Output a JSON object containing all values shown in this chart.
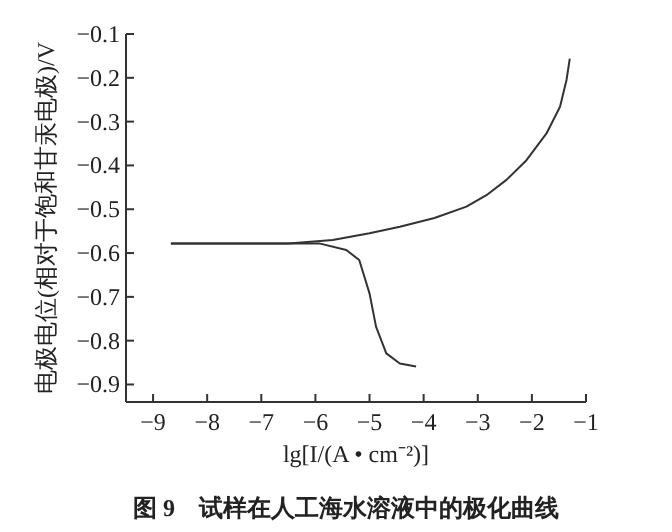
{
  "chart_data": {
    "type": "line",
    "title": "图 9　试样在人工海水溶液中的极化曲线",
    "xlabel": "lg[I/(A • cm⁻²)]",
    "ylabel": "电极电位(相对于饱和甘汞电极)/V",
    "xlim": [
      -9.5,
      -1
    ],
    "ylim": [
      -0.94,
      -0.1
    ],
    "xticks": [
      -9,
      -8,
      -7,
      -6,
      -5,
      -4,
      -3,
      -2,
      -1
    ],
    "yticks": [
      -0.9,
      -0.8,
      -0.7,
      -0.6,
      -0.5,
      -0.4,
      -0.3,
      -0.2,
      -0.1
    ],
    "grid": false,
    "series": [
      {
        "color": "#333333",
        "x": [
          -8.67,
          -7.5,
          -6.5,
          -5.68,
          -5.0,
          -4.44,
          -3.8,
          -3.21,
          -2.84,
          -2.47,
          -2.1,
          -1.73,
          -1.48,
          -1.36,
          -1.3
        ],
        "values": [
          -0.578,
          -0.578,
          -0.578,
          -0.57,
          -0.555,
          -0.54,
          -0.52,
          -0.494,
          -0.468,
          -0.433,
          -0.388,
          -0.327,
          -0.266,
          -0.205,
          -0.156
        ]
      },
      {
        "color": "#333333",
        "x": [
          -8.67,
          -7.5,
          -6.5,
          -5.93,
          -5.43,
          -5.19,
          -5.0,
          -4.88,
          -4.69,
          -4.44,
          -4.14
        ],
        "values": [
          -0.578,
          -0.578,
          -0.578,
          -0.578,
          -0.593,
          -0.616,
          -0.692,
          -0.768,
          -0.829,
          -0.852,
          -0.859
        ]
      }
    ]
  }
}
